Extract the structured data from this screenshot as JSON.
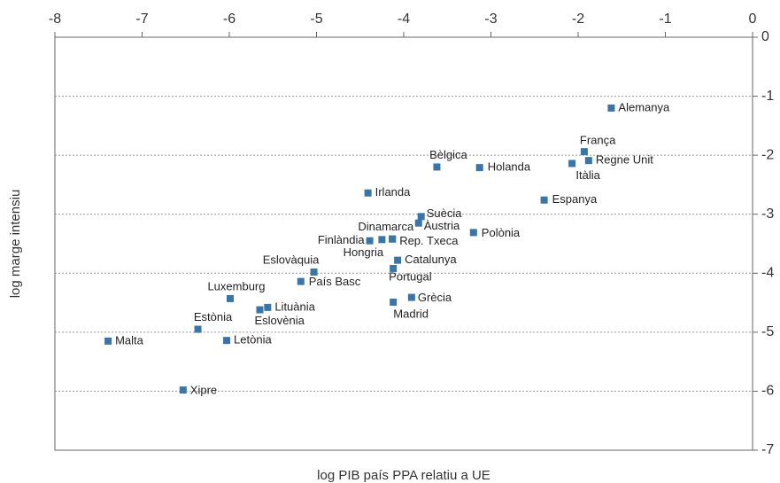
{
  "chart_data": {
    "type": "scatter",
    "xlabel": "log PIB país PPA relatiu a UE",
    "ylabel": "log marge intensiu",
    "xlim": [
      -8,
      0
    ],
    "xticks": [
      -8,
      -7,
      -6,
      -5,
      -4,
      -3,
      -2,
      -1,
      0
    ],
    "ylim": [
      -7,
      0
    ],
    "yticks": [
      0,
      -1,
      -2,
      -3,
      -4,
      -5,
      -6,
      -7
    ],
    "grid": true,
    "color": "#3a75a8",
    "labels": [
      "Alemanya",
      "França",
      "Regne Unit",
      "Itàlia",
      "Bèlgica",
      "Holanda",
      "Espanya",
      "Irlanda",
      "Suècia",
      "Àustria",
      "Polònia",
      "Dinamarca",
      "Rep. Txeca",
      "Finlàndia",
      "Hongria",
      "Eslovàquia",
      "Catalunya",
      "Portugal",
      "País Basc",
      "Luxemburg",
      "Lituània",
      "Eslovènia",
      "Grècia",
      "Madrid",
      "Estònia",
      "Letònia",
      "Malta",
      "Xipre"
    ],
    "x": [
      -1.62,
      -1.93,
      -1.88,
      -2.07,
      -3.62,
      -3.13,
      -2.39,
      -4.41,
      -3.8,
      -3.83,
      -3.2,
      -4.13,
      -4.13,
      -4.39,
      -4.25,
      -5.03,
      -4.07,
      -4.12,
      -5.18,
      -5.99,
      -5.56,
      -5.65,
      -3.91,
      -4.12,
      -6.36,
      -6.03,
      -7.39,
      -6.53
    ],
    "values": [
      -1.2,
      -1.94,
      -2.09,
      -2.14,
      -2.2,
      -2.21,
      -2.76,
      -2.64,
      -3.04,
      -3.15,
      -3.31,
      -3.42,
      -3.42,
      -3.45,
      -3.43,
      -3.98,
      -3.78,
      -3.92,
      -4.14,
      -4.43,
      -4.58,
      -4.62,
      -4.41,
      -4.49,
      -4.95,
      -5.14,
      -5.15,
      -5.98
    ]
  }
}
